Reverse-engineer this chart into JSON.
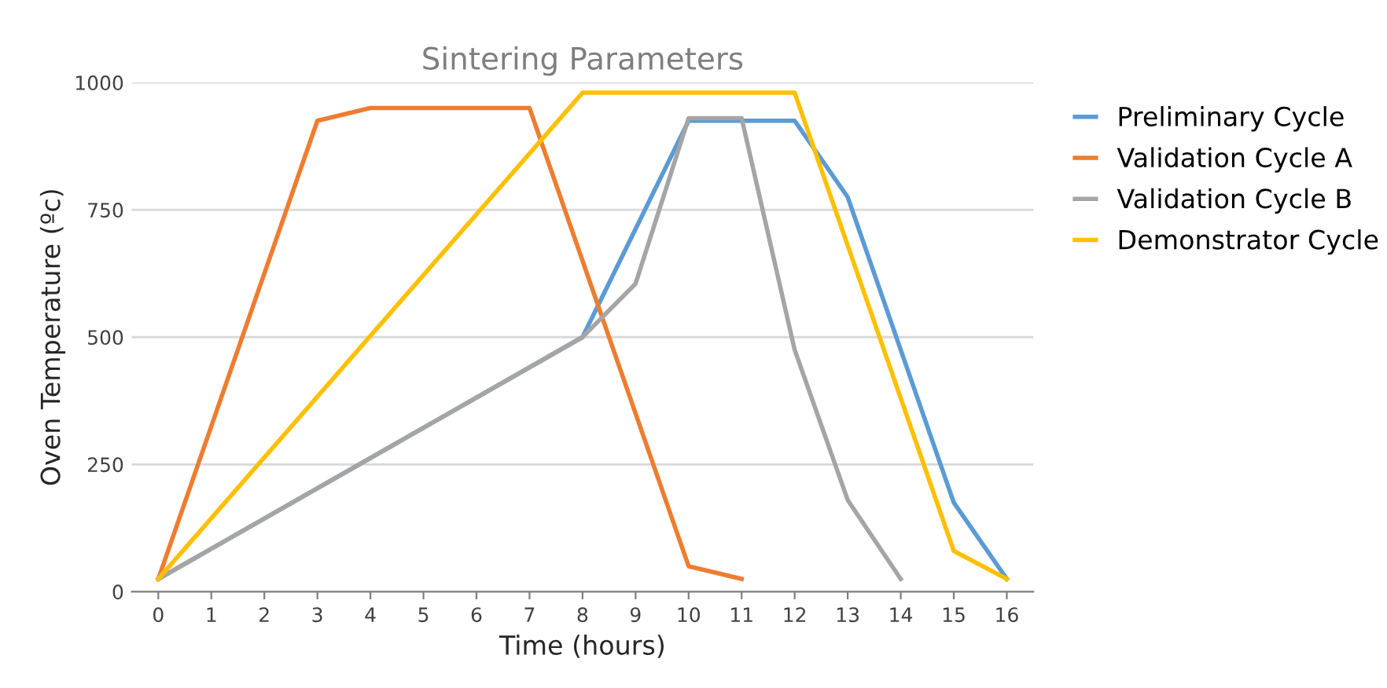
{
  "chart_data": {
    "type": "line",
    "title": "Sintering Parameters",
    "xlabel": "Time (hours)",
    "ylabel": "Oven Temperature (ºc)",
    "xlim": [
      -0.5,
      16.5
    ],
    "xticks": [
      0,
      1,
      2,
      3,
      4,
      5,
      6,
      7,
      8,
      9,
      10,
      11,
      12,
      13,
      14,
      15,
      16
    ],
    "ylim": [
      0,
      1000
    ],
    "yticks": [
      0,
      250,
      500,
      750,
      1000
    ],
    "grid": "y",
    "legend": "right",
    "marker": "none",
    "line_style": "solid",
    "series": [
      {
        "name": "Preliminary Cycle",
        "color": "#5b9bd5",
        "x": [
          0,
          8,
          10,
          11,
          12,
          13,
          15,
          16
        ],
        "values": [
          25,
          500,
          925,
          925,
          925,
          775,
          175,
          25
        ]
      },
      {
        "name": "Validation Cycle A",
        "color": "#ed7d31",
        "x": [
          0,
          3,
          4,
          7,
          10,
          11
        ],
        "values": [
          25,
          925,
          950,
          950,
          50,
          25
        ]
      },
      {
        "name": "Validation Cycle B",
        "color": "#a5a5a5",
        "x": [
          0,
          8,
          9,
          10,
          11,
          12,
          13,
          14
        ],
        "values": [
          25,
          500,
          605,
          930,
          930,
          475,
          180,
          25
        ]
      },
      {
        "name": "Demonstrator Cycle",
        "color": "#ffc000",
        "x": [
          0,
          8,
          12,
          15,
          16
        ],
        "values": [
          25,
          980,
          980,
          80,
          25
        ]
      }
    ]
  }
}
